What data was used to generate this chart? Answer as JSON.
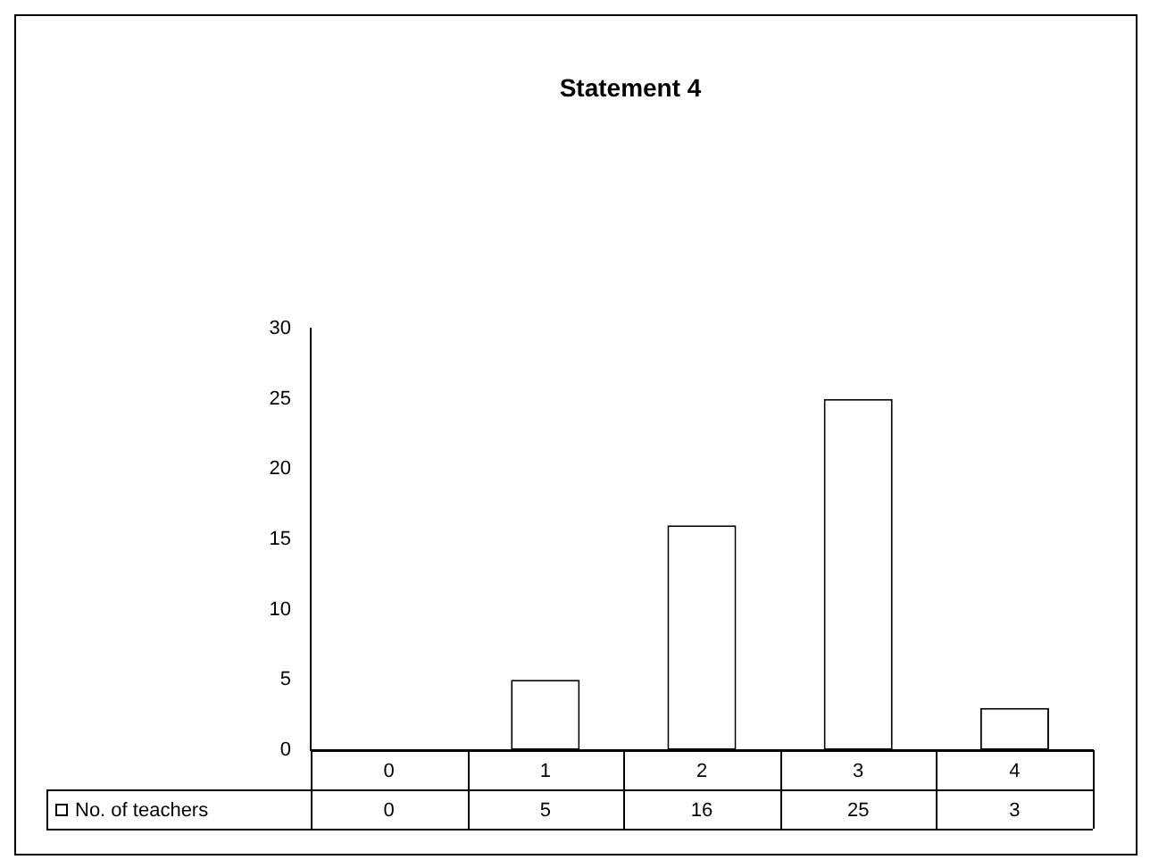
{
  "chart_data": {
    "type": "bar",
    "title": "Statement 4",
    "categories": [
      "0",
      "1",
      "2",
      "3",
      "4"
    ],
    "series": [
      {
        "name": "No. of teachers",
        "color": "#ffffff",
        "values": [
          0,
          5,
          16,
          25,
          3
        ]
      }
    ],
    "ylim": [
      0,
      30
    ],
    "yticks": [
      0,
      5,
      10,
      15,
      20,
      25,
      30
    ],
    "grid": false,
    "legend": "bottom left",
    "data_labels": true
  }
}
